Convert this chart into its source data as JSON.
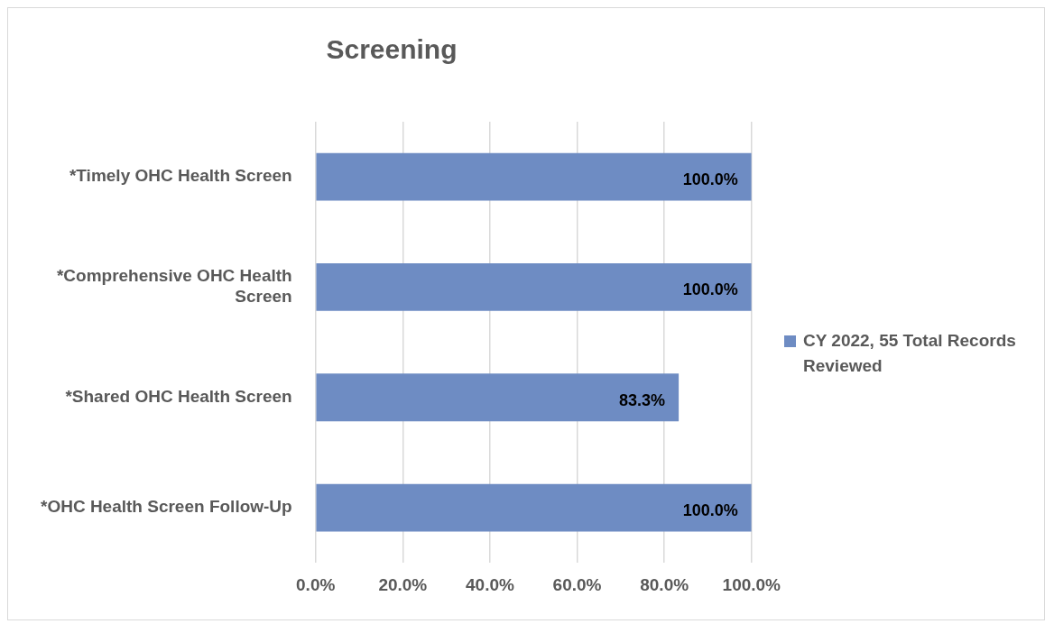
{
  "chart_data": {
    "type": "bar",
    "orientation": "horizontal",
    "title": "Screening",
    "categories": [
      "*Timely OHC Health Screen",
      "*Comprehensive OHC Health Screen",
      "*Shared OHC Health Screen",
      "*OHC Health Screen Follow-Up"
    ],
    "series": [
      {
        "name": "CY 2022, 55 Total Records Reviewed",
        "color": "#6e8cc3",
        "values": [
          100,
          100,
          83.3,
          100
        ],
        "value_labels": [
          "100.0%",
          "100.0%",
          "83.3%",
          "100.0%"
        ]
      }
    ],
    "xlim": [
      0,
      100
    ],
    "xticks": [
      {
        "value": 0,
        "label": "0.0%"
      },
      {
        "value": 20,
        "label": "20.0%"
      },
      {
        "value": 40,
        "label": "40.0%"
      },
      {
        "value": 60,
        "label": "60.0%"
      },
      {
        "value": 80,
        "label": "80.0%"
      },
      {
        "value": 100,
        "label": "100.0%"
      }
    ],
    "grid": "x",
    "legend": "right"
  }
}
